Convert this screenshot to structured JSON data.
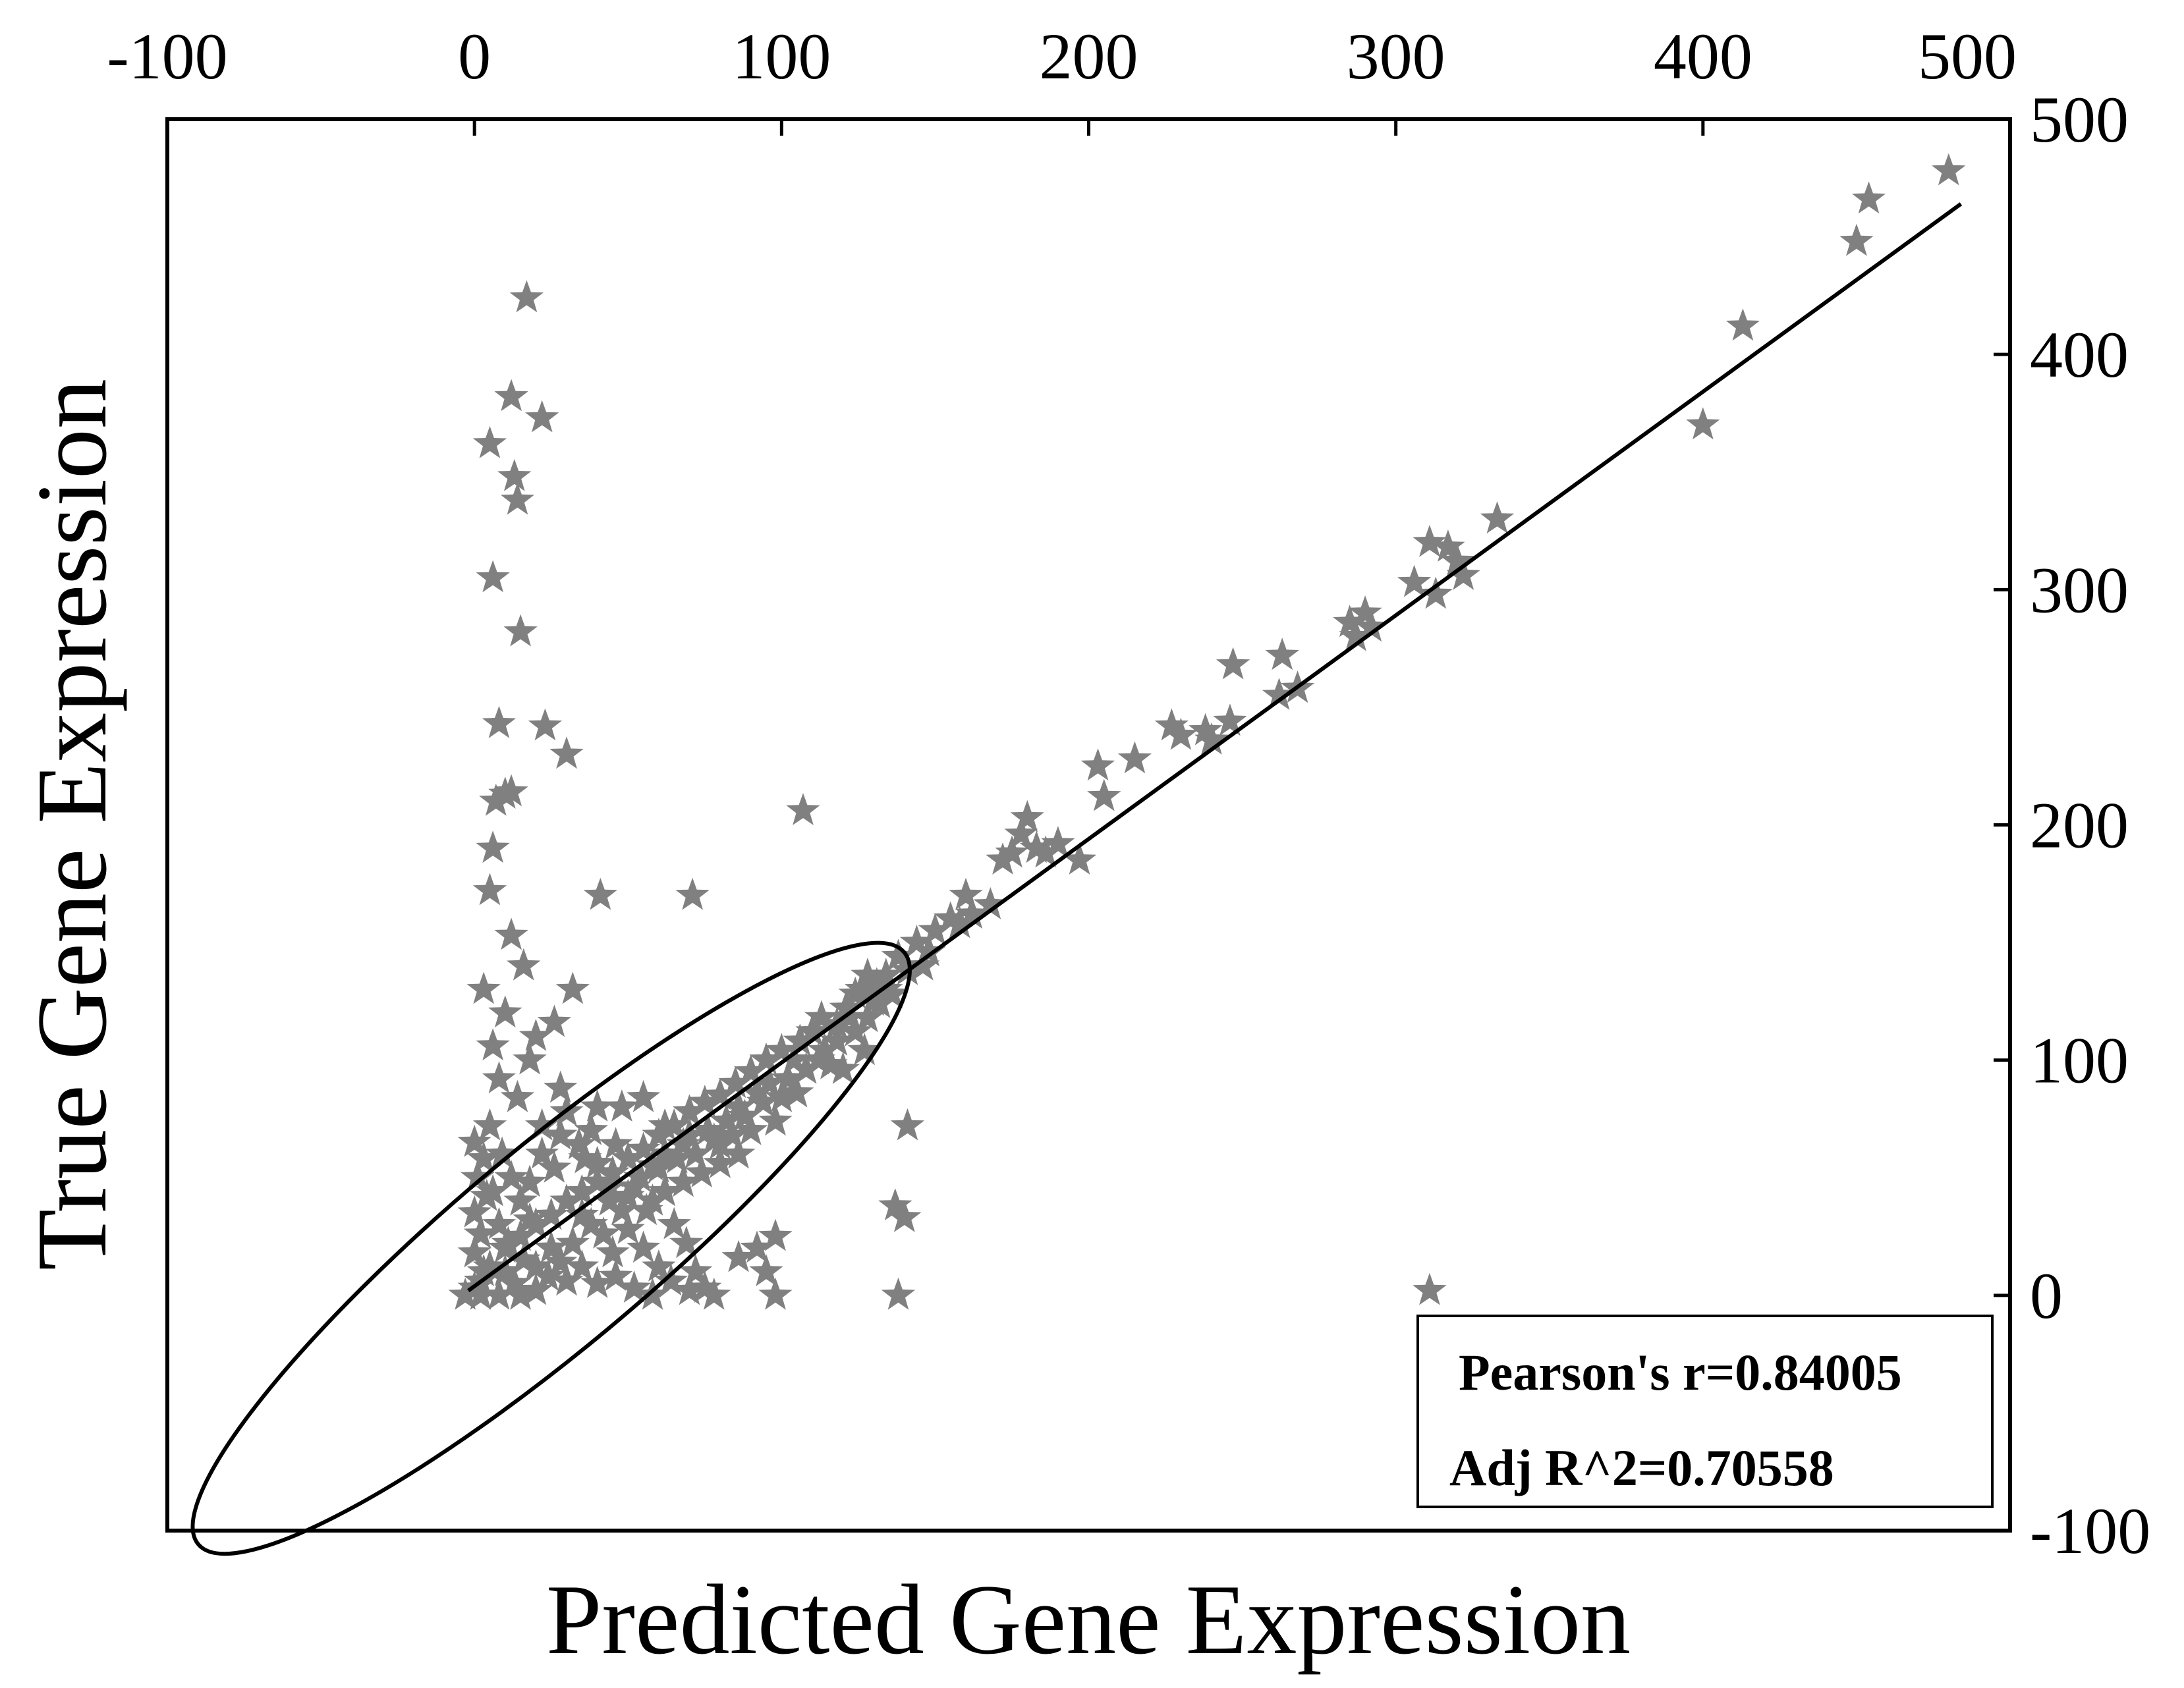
{
  "chart_data": {
    "type": "scatter",
    "title": "",
    "xlabel": "Predicted Gene Expression",
    "ylabel": "True Gene Expression",
    "xlim": [
      -100,
      500
    ],
    "ylim": [
      -100,
      500
    ],
    "x_ticks": [
      "-100",
      "0",
      "100",
      "200",
      "300",
      "400",
      "500"
    ],
    "y_ticks": [
      "-100",
      "0",
      "100",
      "200",
      "300",
      "400",
      "500"
    ],
    "x_axis_position": "top",
    "y_axis_position": "right",
    "grid": false,
    "marker": "star",
    "marker_color": "#808080",
    "line_color": "#000000",
    "fit_line": {
      "x": [
        -2,
        484
      ],
      "y": [
        2,
        464
      ]
    },
    "annotations": {
      "pearson": "Pearson's r=0.84005",
      "adj_r2": "Adj R^2=0.70558"
    },
    "ellipse": {
      "center_x": 25,
      "center_y": 20,
      "semi_major": 150,
      "semi_minor": 32,
      "angle_deg": 40
    },
    "points": [
      [
        480,
        478
      ],
      [
        454,
        466
      ],
      [
        450,
        448
      ],
      [
        413,
        412
      ],
      [
        400,
        370
      ],
      [
        333,
        330
      ],
      [
        311,
        320
      ],
      [
        317,
        318
      ],
      [
        320,
        312
      ],
      [
        322,
        306
      ],
      [
        313,
        298
      ],
      [
        306,
        303
      ],
      [
        290,
        290
      ],
      [
        285,
        286
      ],
      [
        287,
        280
      ],
      [
        292,
        284
      ],
      [
        247,
        268
      ],
      [
        263,
        272
      ],
      [
        268,
        258
      ],
      [
        262,
        255
      ],
      [
        227,
        242
      ],
      [
        230,
        238
      ],
      [
        240,
        236
      ],
      [
        246,
        244
      ],
      [
        238,
        240
      ],
      [
        203,
        225
      ],
      [
        215,
        228
      ],
      [
        205,
        212
      ],
      [
        197,
        185
      ],
      [
        180,
        203
      ],
      [
        178,
        196
      ],
      [
        183,
        190
      ],
      [
        175,
        188
      ],
      [
        172,
        185
      ],
      [
        186,
        188
      ],
      [
        190,
        192
      ],
      [
        160,
        170
      ],
      [
        168,
        166
      ],
      [
        155,
        160
      ],
      [
        158,
        158
      ],
      [
        150,
        155
      ],
      [
        162,
        162
      ],
      [
        144,
        150
      ],
      [
        148,
        146
      ],
      [
        138,
        144
      ],
      [
        141,
        138
      ],
      [
        146,
        140
      ],
      [
        128,
        136
      ],
      [
        134,
        130
      ],
      [
        130,
        125
      ],
      [
        121,
        122
      ],
      [
        124,
        128
      ],
      [
        118,
        115
      ],
      [
        110,
        112
      ],
      [
        113,
        118
      ],
      [
        106,
        108
      ],
      [
        100,
        104
      ],
      [
        95,
        100
      ],
      [
        90,
        95
      ],
      [
        85,
        90
      ],
      [
        80,
        85
      ],
      [
        75,
        82
      ],
      [
        70,
        78
      ],
      [
        65,
        72
      ],
      [
        60,
        68
      ],
      [
        55,
        62
      ],
      [
        50,
        58
      ],
      [
        45,
        52
      ],
      [
        40,
        48
      ],
      [
        35,
        44
      ],
      [
        30,
        40
      ],
      [
        25,
        34
      ],
      [
        20,
        30
      ],
      [
        15,
        25
      ],
      [
        10,
        20
      ],
      [
        5,
        12
      ],
      [
        2,
        6
      ],
      [
        17,
        424
      ],
      [
        12,
        382
      ],
      [
        22,
        373
      ],
      [
        5,
        362
      ],
      [
        13,
        348
      ],
      [
        14,
        338
      ],
      [
        6,
        305
      ],
      [
        15,
        282
      ],
      [
        8,
        243
      ],
      [
        23,
        242
      ],
      [
        30,
        230
      ],
      [
        10,
        213
      ],
      [
        12,
        214
      ],
      [
        7,
        210
      ],
      [
        107,
        206
      ],
      [
        6,
        190
      ],
      [
        5,
        172
      ],
      [
        41,
        170
      ],
      [
        71,
        170
      ],
      [
        12,
        153
      ],
      [
        16,
        140
      ],
      [
        3,
        130
      ],
      [
        32,
        130
      ],
      [
        10,
        120
      ],
      [
        26,
        116
      ],
      [
        20,
        110
      ],
      [
        6,
        106
      ],
      [
        18,
        100
      ],
      [
        8,
        92
      ],
      [
        28,
        88
      ],
      [
        14,
        84
      ],
      [
        30,
        78
      ],
      [
        40,
        80
      ],
      [
        48,
        80
      ],
      [
        55,
        84
      ],
      [
        22,
        72
      ],
      [
        38,
        70
      ],
      [
        62,
        72
      ],
      [
        70,
        68
      ],
      [
        80,
        64
      ],
      [
        90,
        70
      ],
      [
        98,
        74
      ],
      [
        105,
        86
      ],
      [
        120,
        96
      ],
      [
        127,
        104
      ],
      [
        102,
        92
      ],
      [
        141,
        72
      ],
      [
        137,
        38
      ],
      [
        140,
        33
      ],
      [
        138,
        0
      ],
      [
        311,
        2
      ],
      [
        98,
        0
      ],
      [
        95,
        10
      ],
      [
        78,
        0
      ],
      [
        75,
        3
      ],
      [
        72,
        10
      ],
      [
        69,
        22
      ],
      [
        86,
        16
      ],
      [
        92,
        20
      ],
      [
        98,
        25
      ],
      [
        60,
        12
      ],
      [
        55,
        20
      ],
      [
        50,
        28
      ],
      [
        45,
        18
      ],
      [
        65,
        30
      ],
      [
        58,
        40
      ],
      [
        52,
        46
      ],
      [
        44,
        40
      ],
      [
        38,
        30
      ],
      [
        32,
        22
      ],
      [
        28,
        14
      ],
      [
        24,
        8
      ],
      [
        20,
        2
      ],
      [
        15,
        0
      ],
      [
        8,
        0
      ],
      [
        2,
        0
      ],
      [
        -3,
        0
      ],
      [
        0,
        3
      ],
      [
        3,
        10
      ],
      [
        0,
        18
      ],
      [
        2,
        26
      ],
      [
        0,
        35
      ],
      [
        4,
        42
      ],
      [
        1,
        50
      ],
      [
        3,
        58
      ],
      [
        0,
        65
      ],
      [
        5,
        72
      ],
      [
        9,
        60
      ],
      [
        12,
        50
      ],
      [
        15,
        40
      ],
      [
        18,
        32
      ],
      [
        11,
        22
      ],
      [
        8,
        30
      ],
      [
        6,
        44
      ],
      [
        10,
        10
      ],
      [
        13,
        5
      ],
      [
        16,
        15
      ],
      [
        20,
        12
      ],
      [
        25,
        20
      ],
      [
        30,
        6
      ],
      [
        35,
        12
      ],
      [
        40,
        5
      ],
      [
        46,
        8
      ],
      [
        52,
        3
      ],
      [
        58,
        0
      ],
      [
        64,
        6
      ],
      [
        70,
        2
      ],
      [
        35,
        34
      ],
      [
        42,
        26
      ],
      [
        48,
        36
      ],
      [
        54,
        50
      ],
      [
        60,
        54
      ],
      [
        66,
        58
      ],
      [
        72,
        60
      ],
      [
        78,
        66
      ],
      [
        84,
        68
      ],
      [
        88,
        76
      ],
      [
        94,
        82
      ],
      [
        100,
        84
      ],
      [
        108,
        96
      ],
      [
        114,
        104
      ],
      [
        118,
        108
      ],
      [
        124,
        112
      ],
      [
        128,
        118
      ],
      [
        132,
        124
      ],
      [
        112,
        100
      ],
      [
        116,
        98
      ],
      [
        104,
        100
      ],
      [
        96,
        90
      ],
      [
        92,
        86
      ],
      [
        86,
        80
      ],
      [
        82,
        74
      ],
      [
        76,
        70
      ],
      [
        68,
        64
      ],
      [
        62,
        60
      ],
      [
        58,
        55
      ],
      [
        46,
        64
      ],
      [
        36,
        58
      ],
      [
        26,
        54
      ],
      [
        18,
        48
      ],
      [
        22,
        60
      ],
      [
        28,
        68
      ],
      [
        34,
        64
      ],
      [
        40,
        56
      ],
      [
        44,
        46
      ],
      [
        50,
        42
      ],
      [
        56,
        36
      ],
      [
        62,
        44
      ],
      [
        68,
        48
      ],
      [
        74,
        52
      ],
      [
        80,
        56
      ],
      [
        86,
        60
      ],
      [
        122,
        118
      ],
      [
        126,
        130
      ],
      [
        134,
        136
      ],
      [
        136,
        128
      ],
      [
        131,
        132
      ]
    ]
  }
}
